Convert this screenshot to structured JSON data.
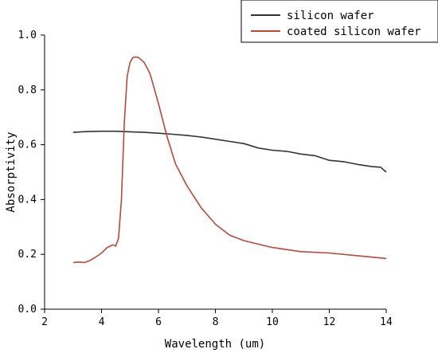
{
  "chart_data": {
    "type": "line",
    "xlabel": "Wavelength (um)",
    "ylabel": "Absorptivity",
    "xlim": [
      2,
      14
    ],
    "ylim": [
      0.0,
      1.0
    ],
    "xticks": [
      "2",
      "4",
      "6",
      "8",
      "10",
      "12",
      "14"
    ],
    "yticks": [
      "0.0",
      "0.2",
      "0.4",
      "0.6",
      "0.8",
      "1.0"
    ],
    "grid": false,
    "legend_position": "top-right",
    "series": [
      {
        "name": "silicon wafer",
        "color": "#333333",
        "x": [
          3.0,
          3.5,
          4.0,
          4.5,
          5.0,
          5.5,
          6.0,
          6.5,
          7.0,
          7.5,
          8.0,
          8.5,
          9.0,
          9.5,
          10.0,
          10.5,
          11.0,
          11.5,
          12.0,
          12.5,
          13.0,
          13.5,
          13.8,
          14.0
        ],
        "y": [
          0.645,
          0.648,
          0.649,
          0.649,
          0.647,
          0.645,
          0.642,
          0.638,
          0.634,
          0.628,
          0.62,
          0.612,
          0.604,
          0.588,
          0.58,
          0.576,
          0.566,
          0.56,
          0.543,
          0.538,
          0.528,
          0.52,
          0.518,
          0.5
        ]
      },
      {
        "name": "coated silicon wafer",
        "color": "#b34a3a",
        "x": [
          3.0,
          3.2,
          3.4,
          3.6,
          3.8,
          4.0,
          4.2,
          4.4,
          4.5,
          4.6,
          4.7,
          4.8,
          4.9,
          5.0,
          5.1,
          5.2,
          5.3,
          5.5,
          5.7,
          6.0,
          6.3,
          6.6,
          7.0,
          7.5,
          8.0,
          8.5,
          9.0,
          10.0,
          11.0,
          12.0,
          13.0,
          14.0
        ],
        "y": [
          0.17,
          0.172,
          0.17,
          0.178,
          0.19,
          0.205,
          0.225,
          0.235,
          0.23,
          0.26,
          0.4,
          0.68,
          0.85,
          0.9,
          0.918,
          0.92,
          0.918,
          0.9,
          0.86,
          0.75,
          0.63,
          0.53,
          0.45,
          0.37,
          0.31,
          0.27,
          0.25,
          0.225,
          0.21,
          0.205,
          0.195,
          0.185
        ]
      }
    ]
  }
}
